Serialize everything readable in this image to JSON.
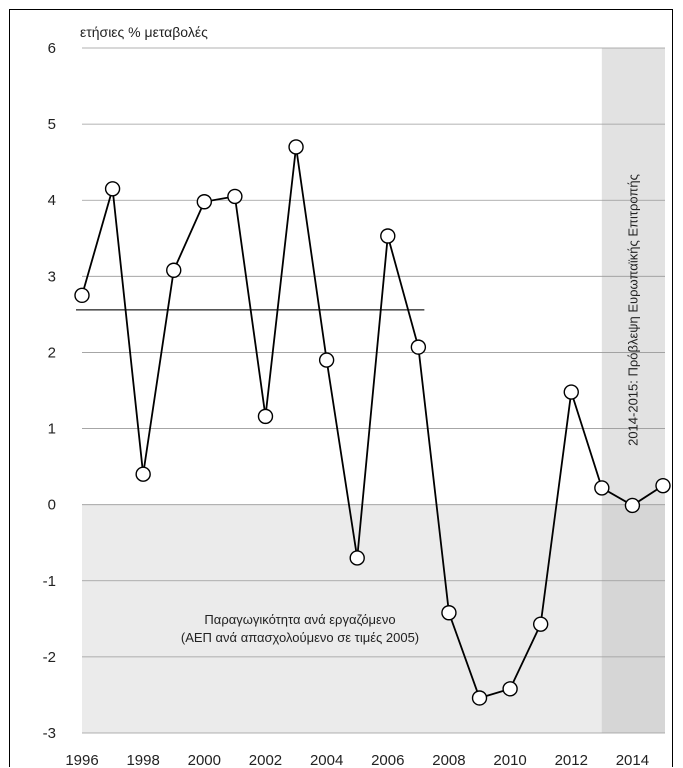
{
  "chart_data": {
    "type": "line",
    "unit_label": "ετήσιες % μεταβολές",
    "x": [
      1996,
      1997,
      1998,
      1999,
      2000,
      2001,
      2002,
      2003,
      2004,
      2005,
      2006,
      2007,
      2008,
      2009,
      2010,
      2011,
      2012,
      2013,
      2014,
      2015
    ],
    "series": [
      {
        "values": [
          2.75,
          4.15,
          0.4,
          3.08,
          3.98,
          4.05,
          1.16,
          4.7,
          1.9,
          -0.7,
          3.53,
          2.07,
          -1.42,
          -2.54,
          -2.42,
          -1.57,
          1.48,
          0.22,
          -0.01,
          0.25
        ]
      }
    ],
    "average_line": {
      "value": 2.56,
      "x_start": 1996,
      "x_end": 2007
    },
    "xticks": [
      "1996",
      "1998",
      "2000",
      "2002",
      "2004",
      "2006",
      "2008",
      "2010",
      "2012",
      "2014"
    ],
    "yticks": [
      "6",
      "5",
      "4",
      "3",
      "2",
      "1",
      "0",
      "-1",
      "-2",
      "-3"
    ],
    "ylim": [
      -3,
      6
    ],
    "xlim": [
      1996,
      2015
    ],
    "grid": true,
    "shaded_negative_area": true,
    "forecast_band": {
      "x_start": 2013,
      "x_end": 2015,
      "label": "2014-2015: Πρόβλεψη Ευρωπαϊκής Επιτροπής"
    },
    "annotation": {
      "line1": "Παραγωγικότητα ανά εργαζόμενο",
      "line2": "(ΑΕΠ ανά απασχολούμενο σε τιμές 2005)"
    },
    "colors": {
      "line": "#000000",
      "marker_fill": "#ffffff",
      "grid": "#999999",
      "negative_area": "#ebebeb",
      "forecast_band": "#e2e2e2",
      "forecast_band_negative": "#d6d6d6"
    }
  }
}
